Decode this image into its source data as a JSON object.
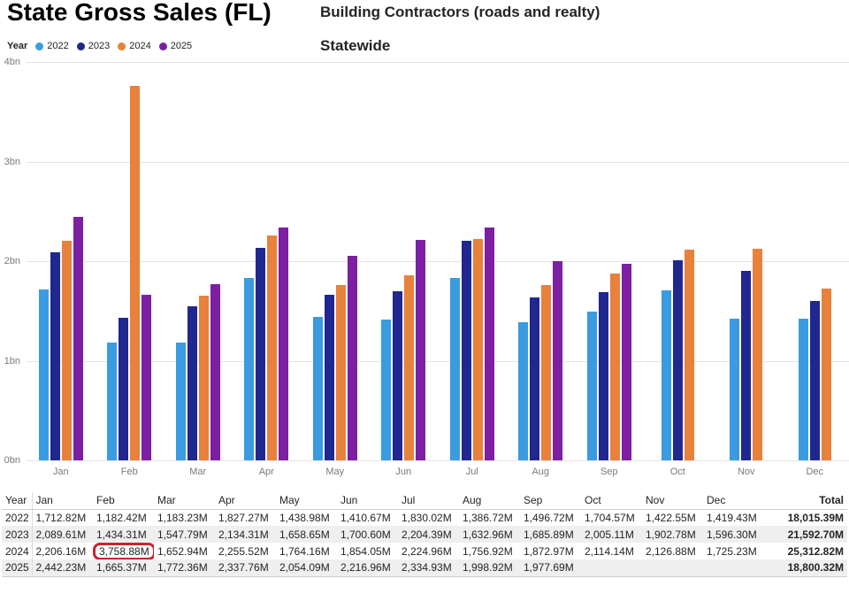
{
  "header": {
    "title": "State Gross Sales (FL)",
    "subtitle1": "Building Contractors (roads and realty)",
    "subtitle2": "Statewide"
  },
  "legend": {
    "label": "Year",
    "items": [
      {
        "label": "2022",
        "color": "#3a9be0"
      },
      {
        "label": "2023",
        "color": "#20278e"
      },
      {
        "label": "2024",
        "color": "#e8813b"
      },
      {
        "label": "2025",
        "color": "#7c1fa2"
      }
    ]
  },
  "chart_data": {
    "type": "bar",
    "title": "State Gross Sales (FL)",
    "subtitle": "Building Contractors (roads and realty) — Statewide",
    "categories": [
      "Jan",
      "Feb",
      "Mar",
      "Apr",
      "May",
      "Jun",
      "Jul",
      "Aug",
      "Sep",
      "Oct",
      "Nov",
      "Dec"
    ],
    "unit": "M",
    "ylim": [
      0,
      4000
    ],
    "ytick_labels": [
      "4bn",
      "3bn",
      "2bn",
      "1bn",
      "0bn"
    ],
    "grid": "horizontal",
    "legend_position": "top-left",
    "series": [
      {
        "name": "2022",
        "color": "#3a9be0",
        "values": [
          1712.82,
          1182.42,
          1183.23,
          1827.27,
          1438.98,
          1410.67,
          1830.02,
          1386.72,
          1496.72,
          1704.57,
          1422.55,
          1419.43
        ]
      },
      {
        "name": "2023",
        "color": "#20278e",
        "values": [
          2089.61,
          1434.31,
          1547.79,
          2134.31,
          1658.65,
          1700.6,
          2204.39,
          1632.96,
          1685.89,
          2005.11,
          1902.78,
          1596.3
        ]
      },
      {
        "name": "2024",
        "color": "#e8813b",
        "values": [
          2206.16,
          3758.88,
          1652.94,
          2255.52,
          1764.16,
          1854.05,
          2224.96,
          1756.92,
          1872.97,
          2114.14,
          2126.88,
          1725.23
        ]
      },
      {
        "name": "2025",
        "color": "#7c1fa2",
        "values": [
          2442.23,
          1665.37,
          1772.36,
          2337.76,
          2054.09,
          2216.96,
          2334.93,
          1998.92,
          1977.69,
          null,
          null,
          null
        ]
      }
    ]
  },
  "table": {
    "columns": [
      "Year",
      "Jan",
      "Feb",
      "Mar",
      "Apr",
      "May",
      "Jun",
      "Jul",
      "Aug",
      "Sep",
      "Oct",
      "Nov",
      "Dec",
      "Total"
    ],
    "rows": [
      {
        "year": "2022",
        "values": [
          "1,712.82M",
          "1,182.42M",
          "1,183.23M",
          "1,827.27M",
          "1,438.98M",
          "1,410.67M",
          "1,830.02M",
          "1,386.72M",
          "1,496.72M",
          "1,704.57M",
          "1,422.55M",
          "1,419.43M"
        ],
        "total": "18,015.39M"
      },
      {
        "year": "2023",
        "values": [
          "2,089.61M",
          "1,434.31M",
          "1,547.79M",
          "2,134.31M",
          "1,658.65M",
          "1,700.60M",
          "2,204.39M",
          "1,632.96M",
          "1,685.89M",
          "2,005.11M",
          "1,902.78M",
          "1,596.30M"
        ],
        "total": "21,592.70M"
      },
      {
        "year": "2024",
        "values": [
          "2,206.16M",
          "3,758.88M",
          "1,652.94M",
          "2,255.52M",
          "1,764.16M",
          "1,854.05M",
          "2,224.96M",
          "1,756.92M",
          "1,872.97M",
          "2,114.14M",
          "2,126.88M",
          "1,725.23M"
        ],
        "total": "25,312.82M"
      },
      {
        "year": "2025",
        "values": [
          "2,442.23M",
          "1,665.37M",
          "1,772.36M",
          "2,337.76M",
          "2,054.09M",
          "2,216.96M",
          "2,334.93M",
          "1,998.92M",
          "1,977.69M",
          "",
          "",
          ""
        ],
        "total": "18,800.32M"
      }
    ],
    "highlight": {
      "row_year": "2024",
      "column": "Feb",
      "color": "#c9252d"
    }
  }
}
